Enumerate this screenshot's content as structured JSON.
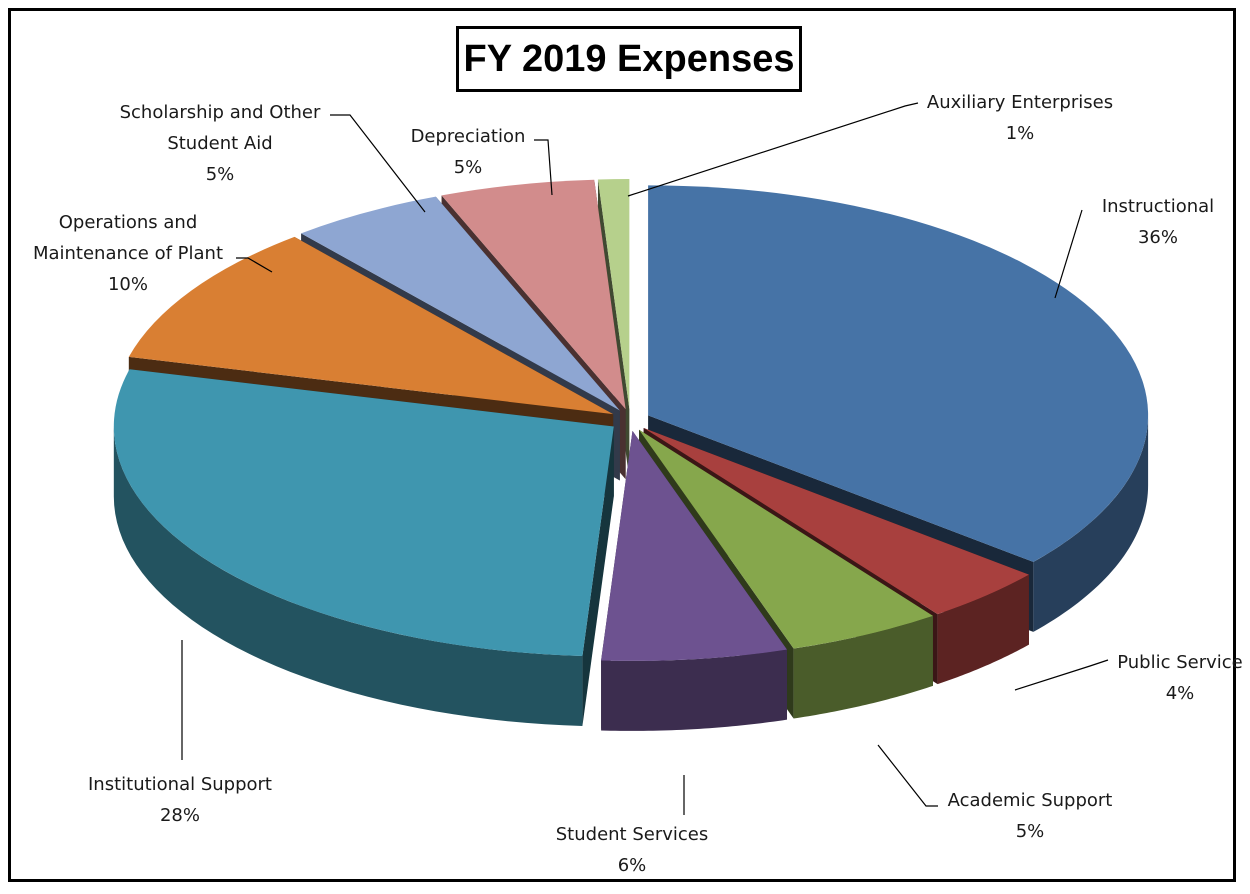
{
  "chart_data": {
    "type": "pie",
    "title": "FY 2019 Expenses",
    "slices": [
      {
        "label": "Instructional",
        "pct_label": "36%",
        "value": 36,
        "color": "#4673A6"
      },
      {
        "label": "Public Service",
        "pct_label": "4%",
        "value": 4,
        "color": "#A8403E"
      },
      {
        "label": "Academic Support",
        "pct_label": "5%",
        "value": 5,
        "color": "#86A74C"
      },
      {
        "label": "Student Services",
        "pct_label": "6%",
        "value": 6,
        "color": "#6D5290"
      },
      {
        "label": "Institutional Support",
        "pct_label": "28%",
        "value": 28,
        "color": "#3F96AF"
      },
      {
        "label": "Operations and Maintenance of Plant",
        "pct_label": "10%",
        "value": 10,
        "color": "#D97F33"
      },
      {
        "label": "Scholarship and Other Student Aid",
        "pct_label": "5%",
        "value": 5,
        "color": "#8EA6D2"
      },
      {
        "label": "Depreciation",
        "pct_label": "5%",
        "value": 5,
        "color": "#D28C8C"
      },
      {
        "label": "Auxiliary Enterprises",
        "pct_label": "1%",
        "value": 1,
        "color": "#B6D08C"
      }
    ],
    "legend": "none"
  }
}
